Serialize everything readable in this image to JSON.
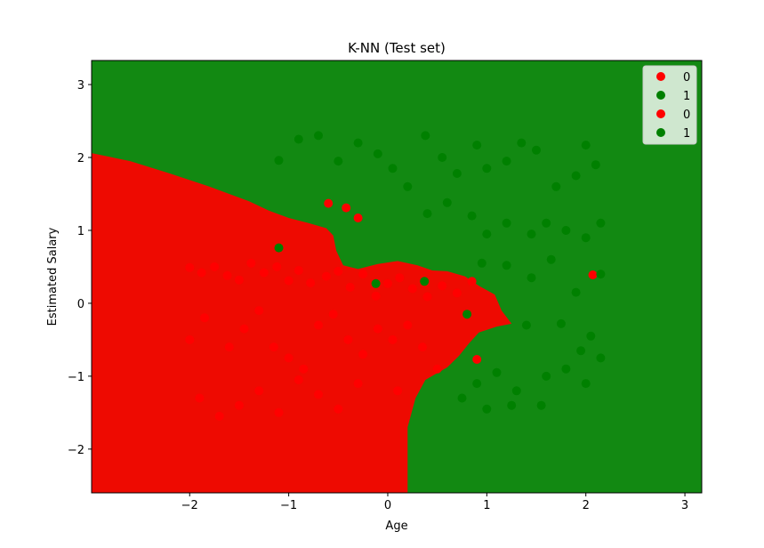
{
  "chart_data": {
    "type": "scatter",
    "title": "K-NN (Test set)",
    "xlabel": "Age",
    "ylabel": "Estimated Salary",
    "xlim": [
      -2.99,
      3.17
    ],
    "ylim": [
      -2.6,
      3.33
    ],
    "xticks": [
      -2,
      -1,
      0,
      1,
      2,
      3
    ],
    "yticks": [
      -2,
      -1,
      0,
      1,
      2,
      3
    ],
    "xtick_labels": [
      "−2",
      "−1",
      "0",
      "1",
      "2",
      "3"
    ],
    "ytick_labels": [
      "−2",
      "−1",
      "0",
      "1",
      "2",
      "3"
    ],
    "grid": false,
    "legend_position": "top-right",
    "regions": {
      "class0_color": "#ff0000",
      "class1_color": "#008000",
      "class0_boundary": [
        [
          -2.99,
          2.06
        ],
        [
          -2.6,
          1.95
        ],
        [
          -2.2,
          1.78
        ],
        [
          -1.8,
          1.6
        ],
        [
          -1.4,
          1.4
        ],
        [
          -1.2,
          1.27
        ],
        [
          -1.0,
          1.17
        ],
        [
          -0.8,
          1.1
        ],
        [
          -0.62,
          1.03
        ],
        [
          -0.55,
          0.93
        ],
        [
          -0.52,
          0.72
        ],
        [
          -0.45,
          0.52
        ],
        [
          -0.3,
          0.47
        ],
        [
          -0.1,
          0.54
        ],
        [
          0.1,
          0.58
        ],
        [
          0.3,
          0.52
        ],
        [
          0.45,
          0.45
        ],
        [
          0.6,
          0.44
        ],
        [
          0.78,
          0.37
        ],
        [
          0.92,
          0.24
        ],
        [
          1.08,
          0.12
        ],
        [
          1.15,
          -0.1
        ],
        [
          1.25,
          -0.28
        ],
        [
          1.1,
          -0.32
        ],
        [
          0.92,
          -0.4
        ],
        [
          0.82,
          -0.55
        ],
        [
          0.72,
          -0.72
        ],
        [
          0.6,
          -0.88
        ],
        [
          0.38,
          -1.05
        ],
        [
          0.28,
          -1.3
        ],
        [
          0.2,
          -1.7
        ],
        [
          0.2,
          -2.6
        ],
        [
          -2.99,
          -2.6
        ]
      ]
    },
    "series": [
      {
        "name": "0",
        "color": "#ff0000",
        "points": [
          [
            -0.6,
            1.37
          ],
          [
            -0.42,
            1.31
          ],
          [
            -0.3,
            1.17
          ],
          [
            0.9,
            -0.77
          ],
          [
            2.07,
            0.39
          ],
          [
            -2.0,
            0.49
          ],
          [
            -1.88,
            0.42
          ],
          [
            -1.75,
            0.5
          ],
          [
            -1.62,
            0.38
          ],
          [
            -1.5,
            0.32
          ],
          [
            -1.38,
            0.55
          ],
          [
            -1.25,
            0.42
          ],
          [
            -1.12,
            0.5
          ],
          [
            -1.0,
            0.31
          ],
          [
            -0.9,
            0.45
          ],
          [
            -0.78,
            0.28
          ],
          [
            -0.62,
            0.37
          ],
          [
            -0.5,
            0.44
          ],
          [
            -0.38,
            0.22
          ],
          [
            -0.25,
            0.4
          ],
          [
            -0.12,
            0.1
          ],
          [
            0.0,
            0.27
          ],
          [
            0.12,
            0.35
          ],
          [
            0.25,
            0.2
          ],
          [
            0.4,
            0.09
          ],
          [
            0.55,
            0.24
          ],
          [
            0.7,
            0.14
          ],
          [
            0.85,
            0.3
          ],
          [
            -2.0,
            -0.5
          ],
          [
            -1.85,
            -0.2
          ],
          [
            -1.6,
            -0.6
          ],
          [
            -1.45,
            -0.35
          ],
          [
            -1.3,
            -0.1
          ],
          [
            -1.15,
            -0.6
          ],
          [
            -1.0,
            -0.75
          ],
          [
            -0.85,
            -0.9
          ],
          [
            -0.7,
            -0.3
          ],
          [
            -0.55,
            -0.15
          ],
          [
            -0.4,
            -0.5
          ],
          [
            -0.25,
            -0.7
          ],
          [
            -0.1,
            -0.35
          ],
          [
            0.05,
            -0.5
          ],
          [
            0.2,
            -0.3
          ],
          [
            0.35,
            -0.6
          ],
          [
            0.5,
            -0.9
          ],
          [
            -1.9,
            -1.3
          ],
          [
            -1.7,
            -1.55
          ],
          [
            -1.5,
            -1.4
          ],
          [
            -1.3,
            -1.2
          ],
          [
            -1.1,
            -1.5
          ],
          [
            -0.9,
            -1.05
          ],
          [
            -0.7,
            -1.25
          ],
          [
            -0.5,
            -1.45
          ],
          [
            -0.3,
            -1.1
          ],
          [
            0.1,
            -1.2
          ]
        ]
      },
      {
        "name": "1",
        "color": "#008000",
        "points": [
          [
            -1.1,
            1.96
          ],
          [
            -0.9,
            2.25
          ],
          [
            -0.7,
            2.3
          ],
          [
            -0.5,
            1.95
          ],
          [
            -0.3,
            2.2
          ],
          [
            -0.1,
            2.05
          ],
          [
            0.05,
            1.85
          ],
          [
            0.2,
            1.6
          ],
          [
            0.38,
            2.3
          ],
          [
            0.55,
            2.0
          ],
          [
            0.7,
            1.78
          ],
          [
            0.9,
            2.17
          ],
          [
            1.0,
            1.85
          ],
          [
            1.2,
            1.95
          ],
          [
            1.35,
            2.2
          ],
          [
            1.5,
            2.1
          ],
          [
            1.7,
            1.6
          ],
          [
            1.9,
            1.75
          ],
          [
            2.0,
            2.17
          ],
          [
            2.1,
            1.9
          ],
          [
            0.4,
            1.23
          ],
          [
            0.6,
            1.38
          ],
          [
            0.85,
            1.2
          ],
          [
            1.0,
            0.95
          ],
          [
            1.2,
            1.1
          ],
          [
            1.45,
            0.95
          ],
          [
            1.6,
            1.1
          ],
          [
            1.8,
            1.0
          ],
          [
            2.0,
            0.9
          ],
          [
            2.15,
            1.1
          ],
          [
            0.95,
            0.55
          ],
          [
            1.2,
            0.52
          ],
          [
            1.45,
            0.35
          ],
          [
            1.65,
            0.6
          ],
          [
            1.9,
            0.15
          ],
          [
            2.15,
            0.4
          ],
          [
            -1.1,
            0.76
          ],
          [
            -0.12,
            0.27
          ],
          [
            0.37,
            0.3
          ],
          [
            0.9,
            -1.1
          ],
          [
            1.1,
            -0.95
          ],
          [
            1.3,
            -1.2
          ],
          [
            1.55,
            -1.4
          ],
          [
            1.8,
            -0.9
          ],
          [
            2.0,
            -1.1
          ],
          [
            2.15,
            -0.75
          ],
          [
            0.75,
            -1.3
          ],
          [
            1.0,
            -1.45
          ],
          [
            1.25,
            -1.4
          ],
          [
            1.6,
            -1.0
          ],
          [
            1.75,
            -0.28
          ],
          [
            1.95,
            -0.65
          ],
          [
            2.05,
            -0.45
          ],
          [
            0.8,
            -0.15
          ],
          [
            1.4,
            -0.3
          ]
        ]
      }
    ],
    "legend": [
      {
        "label": "0",
        "color": "#ff0000"
      },
      {
        "label": "1",
        "color": "#008000"
      },
      {
        "label": "0",
        "color": "#ff0000"
      },
      {
        "label": "1",
        "color": "#008000"
      }
    ]
  }
}
